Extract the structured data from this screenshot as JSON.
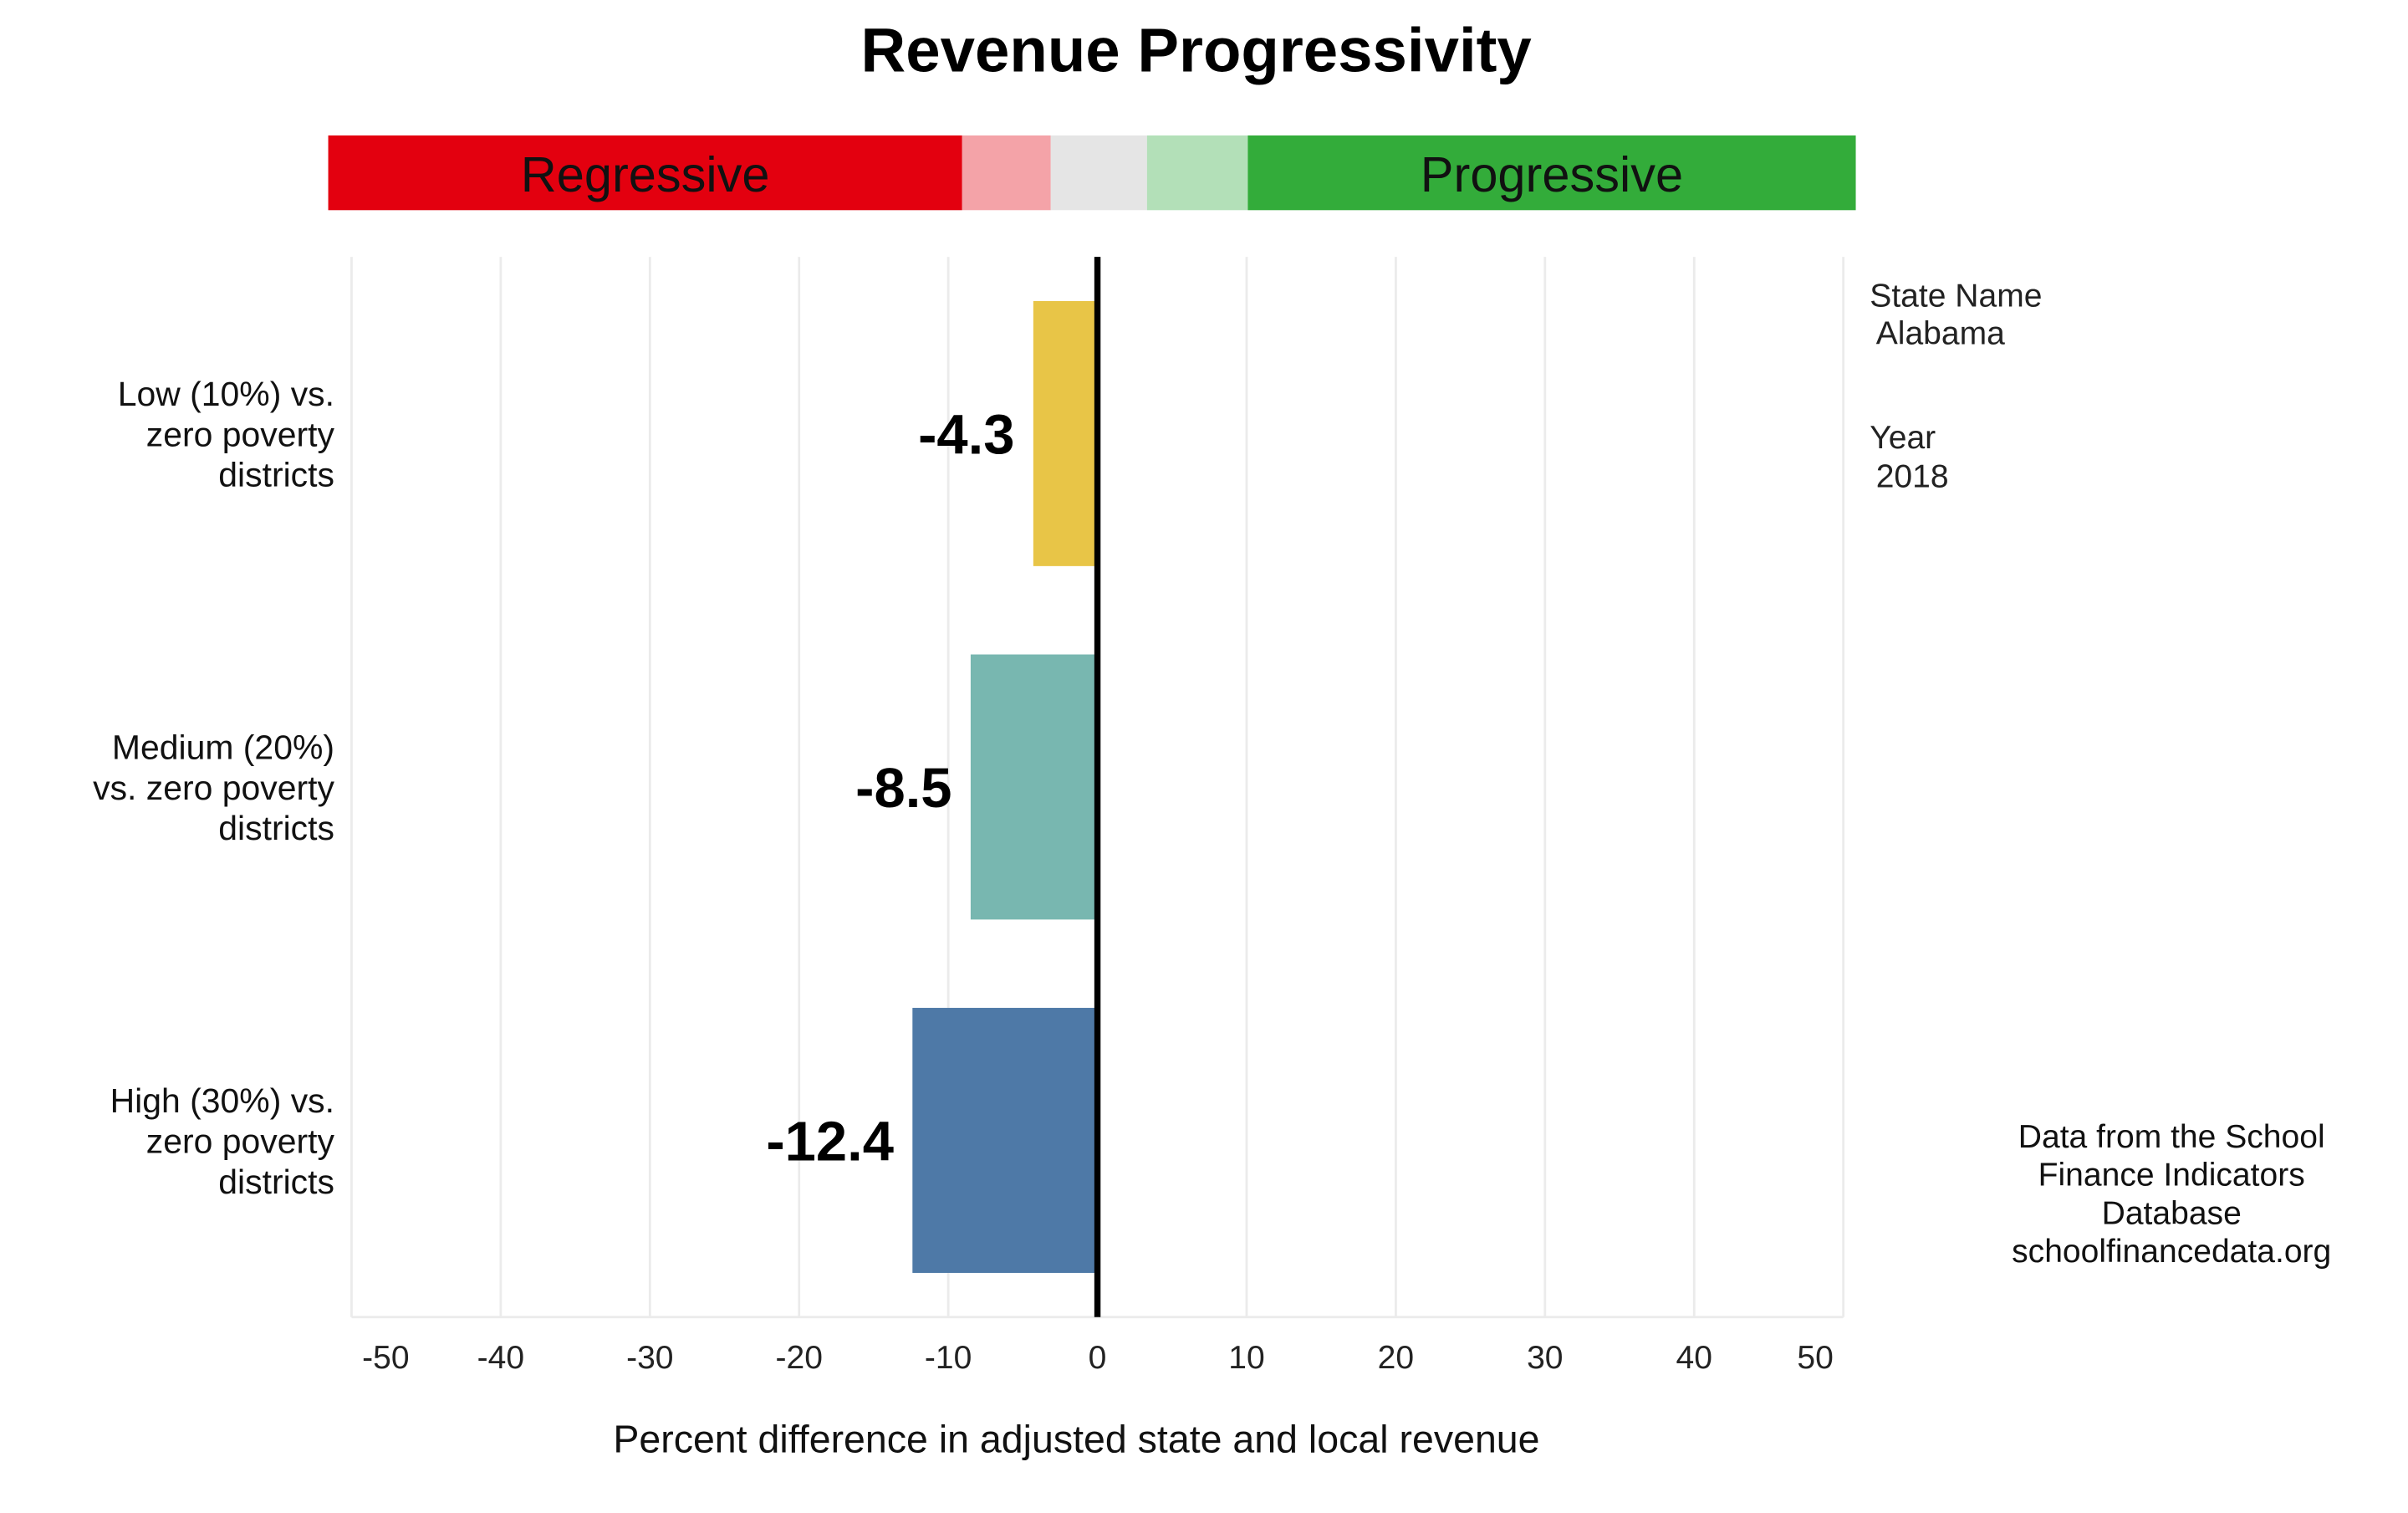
{
  "chart_data": {
    "type": "bar",
    "orientation": "horizontal",
    "title": "Revenue Progressivity",
    "xlabel": "Percent difference in adjusted state and local revenue",
    "ylabel": "",
    "xlim": [
      -50,
      50
    ],
    "xticks": [
      -50,
      -40,
      -30,
      -20,
      -10,
      0,
      10,
      20,
      30,
      40,
      50
    ],
    "grid": "vertical",
    "categories": [
      [
        "Low (10%) vs.",
        "zero poverty",
        "districts"
      ],
      [
        "Medium (20%)",
        "vs. zero poverty",
        "districts"
      ],
      [
        "High (30%) vs.",
        "zero poverty",
        "districts"
      ]
    ],
    "values": [
      -4.3,
      -8.5,
      -12.4
    ],
    "value_labels": [
      "-4.3",
      "-8.5",
      "-12.4"
    ],
    "bar_colors": [
      "#e8c547",
      "#78b7b0",
      "#4e79a7"
    ],
    "scale_bar": {
      "labels": {
        "regressive": "Regressive",
        "progressive": "Progressive"
      },
      "segments": [
        {
          "from": -50,
          "to": -8.5,
          "color": "#e3000f"
        },
        {
          "from": -8.5,
          "to": -2.7,
          "color": "#f4a3a8"
        },
        {
          "from": -2.7,
          "to": 3.6,
          "color": "#e5e5e5"
        },
        {
          "from": 3.6,
          "to": 10.2,
          "color": "#b3e0b8"
        },
        {
          "from": 10.2,
          "to": 50,
          "color": "#33ac3a"
        }
      ]
    },
    "side_info": {
      "state_label": "State Name",
      "state_value": "Alabama",
      "year_label": "Year",
      "year_value": "2018"
    },
    "source_lines": [
      "Data from the School",
      "Finance Indicators",
      "Database",
      "schoolfinancedata.org"
    ]
  }
}
